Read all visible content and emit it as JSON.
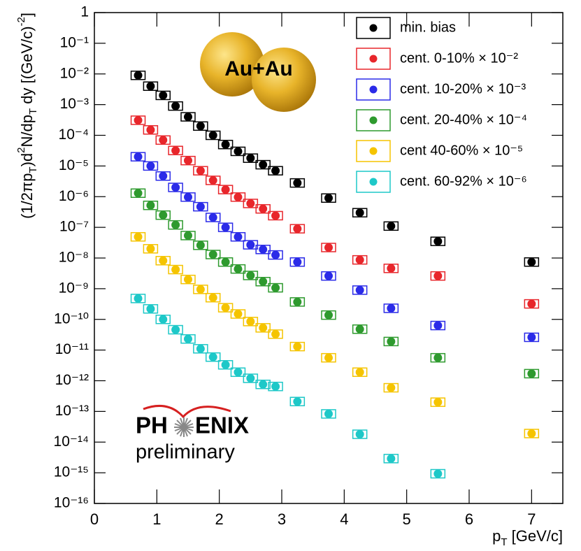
{
  "chart_data": {
    "type": "scatter",
    "ylabel": [
      "(1/2πp",
      "T",
      ")d",
      "2",
      "N/dp",
      "T",
      " dy [(GeV/c)",
      "-2",
      "]"
    ],
    "xlabel": [
      "p",
      "T",
      " [GeV/c]"
    ],
    "annotation": "Au+Au",
    "logo_parts": [
      "PH",
      "ENIX"
    ],
    "logo_subtitle": "preliminary",
    "log_y": true,
    "legend": "top-right",
    "xlim": [
      0,
      7.5
    ],
    "xticks": [
      0,
      1,
      2,
      3,
      4,
      5,
      6,
      7
    ],
    "ylim": [
      1e-16,
      1
    ],
    "yticks": [
      1,
      {
        "value": 0.1,
        "label": "10⁻¹"
      },
      {
        "value": 0.01,
        "label": "10⁻²"
      },
      {
        "value": 0.001,
        "label": "10⁻³"
      },
      {
        "value": 0.0001,
        "label": "10⁻⁴"
      },
      {
        "value": 1e-05,
        "label": "10⁻⁵"
      },
      {
        "value": 1e-06,
        "label": "10⁻⁶"
      },
      {
        "value": 1e-07,
        "label": "10⁻⁷"
      },
      {
        "value": 1e-08,
        "label": "10⁻⁸"
      },
      {
        "value": 1e-09,
        "label": "10⁻⁹"
      },
      {
        "value": 1e-10,
        "label": "10⁻¹⁰"
      },
      {
        "value": 1e-11,
        "label": "10⁻¹¹"
      },
      {
        "value": 1e-12,
        "label": "10⁻¹²"
      },
      {
        "value": 1e-13,
        "label": "10⁻¹³"
      },
      {
        "value": 1e-14,
        "label": "10⁻¹⁴"
      },
      {
        "value": 1e-15,
        "label": "10⁻¹⁵"
      },
      {
        "value": 1e-16,
        "label": "10⁻¹⁶"
      }
    ],
    "x": [
      0.7,
      0.9,
      1.1,
      1.3,
      1.5,
      1.7,
      1.9,
      2.1,
      2.3,
      2.5,
      2.7,
      2.9,
      3.25,
      3.75,
      4.25,
      4.75,
      5.5,
      7.0
    ],
    "series": [
      {
        "name": "min. bias",
        "color": "#000000",
        "values": [
          0.009,
          0.004,
          0.002,
          0.0009,
          0.0004,
          0.0002,
          0.0001,
          5e-05,
          3e-05,
          1.8e-05,
          1.1e-05,
          7e-06,
          2.8e-06,
          9e-07,
          3e-07,
          1.1e-07,
          3.5e-08,
          7.4e-09
        ]
      },
      {
        "name": "cent. 0-10% × 10⁻²",
        "color": "#e8262b",
        "values": [
          0.00031,
          0.00015,
          7e-05,
          3.2e-05,
          1.5e-05,
          7e-06,
          3.4e-06,
          1.7e-06,
          9.7e-07,
          6e-07,
          4e-07,
          2.4e-07,
          9e-08,
          2.2e-08,
          8.7e-09,
          4.6e-09,
          2.6e-09,
          3.2e-10
        ]
      },
      {
        "name": "cent. 10-20% × 10⁻³",
        "color": "#2b2be8",
        "values": [
          2e-05,
          1e-05,
          4.7e-06,
          2e-06,
          9.7e-07,
          4.7e-07,
          2.1e-07,
          1e-07,
          4.9e-08,
          2.7e-08,
          1.9e-08,
          1.26e-08,
          7.4e-09,
          2.6e-09,
          9e-10,
          2.3e-10,
          6.3e-11,
          2.6e-11
        ]
      },
      {
        "name": "cent. 20-40% × 10⁻⁴",
        "color": "#2e9a2e",
        "values": [
          1.3e-06,
          5.2e-07,
          2.5e-07,
          1.2e-07,
          5.4e-08,
          2.6e-08,
          1.3e-08,
          7.4e-09,
          4.4e-09,
          2.7e-09,
          1.7e-09,
          1.07e-09,
          3.7e-10,
          1.38e-10,
          4.8e-11,
          1.9e-11,
          5.6e-12,
          1.7e-12
        ]
      },
      {
        "name": "cent 40-60% × 10⁻⁵",
        "color": "#f5c400",
        "values": [
          4.9e-08,
          2e-08,
          8.2e-09,
          4.2e-09,
          2e-09,
          9.5e-10,
          5.1e-10,
          2.4e-10,
          1.5e-10,
          8.5e-11,
          5.3e-11,
          3.3e-11,
          1.3e-11,
          5.6e-12,
          1.9e-12,
          5.9e-13,
          2e-13,
          1.9e-14
        ]
      },
      {
        "name": "cent. 60-92% × 10⁻⁶",
        "color": "#1ec8c8",
        "values": [
          4.8e-10,
          2.2e-10,
          1e-10,
          4.6e-11,
          2.3e-11,
          1.1e-11,
          5.9e-12,
          3.3e-12,
          1.9e-12,
          1.2e-12,
          7.6e-13,
          6.5e-13,
          2.1e-13,
          8.3e-14,
          1.8e-14,
          2.9e-15,
          9.3e-16,
          null
        ]
      }
    ]
  }
}
